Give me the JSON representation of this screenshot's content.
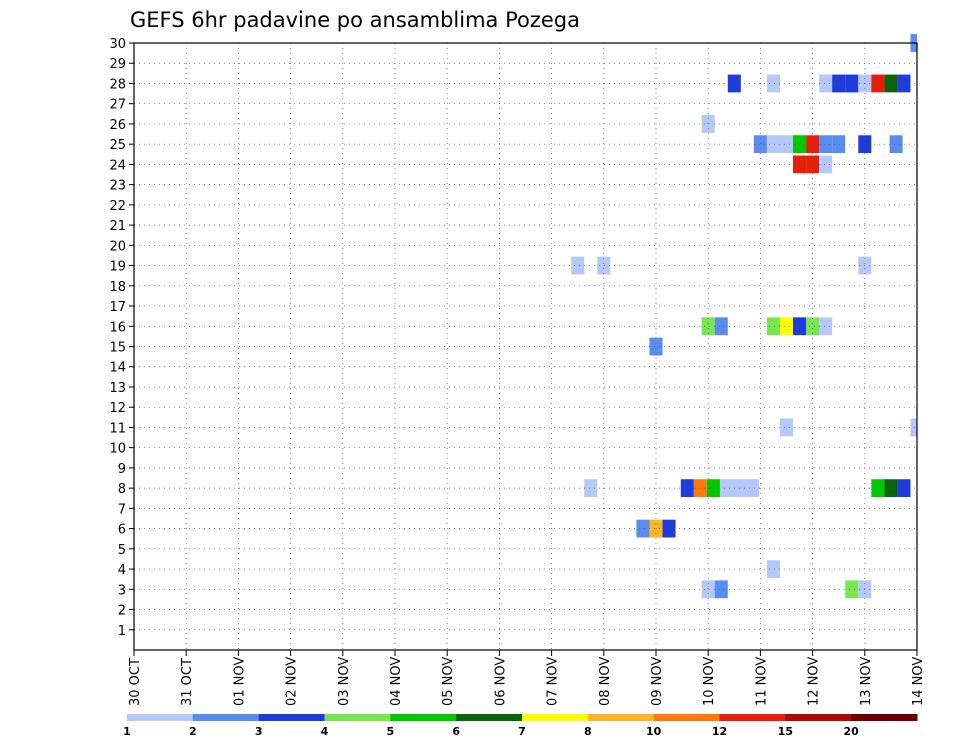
{
  "chart_data": {
    "type": "heatmap",
    "title": "GEFS 6hr padavine po ansamblima Pozega",
    "x_labels": [
      "30 OCT",
      "31 OCT",
      "01 NOV",
      "02 NOV",
      "03 NOV",
      "04 NOV",
      "05 NOV",
      "06 NOV",
      "07 NOV",
      "08 NOV",
      "09 NOV",
      "10 NOV",
      "11 NOV",
      "12 NOV",
      "13 NOV",
      "14 NOV"
    ],
    "x_range_days": [
      0,
      15
    ],
    "y_labels": [
      "1",
      "2",
      "3",
      "4",
      "5",
      "6",
      "7",
      "8",
      "9",
      "10",
      "11",
      "12",
      "13",
      "14",
      "15",
      "16",
      "17",
      "18",
      "19",
      "20",
      "21",
      "22",
      "23",
      "24",
      "25",
      "26",
      "27",
      "28",
      "29",
      "30"
    ],
    "y_range": [
      0,
      30
    ],
    "grid": true,
    "legend": {
      "placement": "bottom",
      "labels": [
        "1",
        "2",
        "3",
        "4",
        "5",
        "6",
        "7",
        "8",
        "10",
        "12",
        "15",
        "20"
      ],
      "colors": [
        "#b4c8fa",
        "#5a8cf0",
        "#1e3cdc",
        "#78e650",
        "#00c800",
        "#0a640a",
        "#ffff00",
        "#ffb428",
        "#ff780a",
        "#e61e0a",
        "#aa0a0a",
        "#6e0000"
      ]
    },
    "cells": [
      {
        "d": 15.0,
        "m": 30,
        "c": 1
      },
      {
        "d": 11.5,
        "m": 28,
        "c": 2
      },
      {
        "d": 12.25,
        "m": 28,
        "c": 0
      },
      {
        "d": 13.25,
        "m": 28,
        "c": 0
      },
      {
        "d": 13.5,
        "m": 28,
        "c": 2
      },
      {
        "d": 13.75,
        "m": 28,
        "c": 2
      },
      {
        "d": 14.0,
        "m": 28,
        "c": 0
      },
      {
        "d": 14.25,
        "m": 28,
        "c": 9
      },
      {
        "d": 14.5,
        "m": 28,
        "c": 5
      },
      {
        "d": 14.75,
        "m": 28,
        "c": 2
      },
      {
        "d": 11.0,
        "m": 26,
        "c": 0
      },
      {
        "d": 12.0,
        "m": 25,
        "c": 1
      },
      {
        "d": 12.25,
        "m": 25,
        "c": 0
      },
      {
        "d": 12.5,
        "m": 25,
        "c": 0
      },
      {
        "d": 12.75,
        "m": 25,
        "c": 4
      },
      {
        "d": 13.0,
        "m": 25,
        "c": 9
      },
      {
        "d": 13.25,
        "m": 25,
        "c": 1
      },
      {
        "d": 13.5,
        "m": 25,
        "c": 1
      },
      {
        "d": 14.0,
        "m": 25,
        "c": 2
      },
      {
        "d": 14.6,
        "m": 25,
        "c": 1
      },
      {
        "d": 12.75,
        "m": 24,
        "c": 9
      },
      {
        "d": 13.0,
        "m": 24,
        "c": 9
      },
      {
        "d": 13.25,
        "m": 24,
        "c": 0
      },
      {
        "d": 8.5,
        "m": 19,
        "c": 0
      },
      {
        "d": 9.0,
        "m": 19,
        "c": 0
      },
      {
        "d": 14.0,
        "m": 19,
        "c": 0
      },
      {
        "d": 11.0,
        "m": 16,
        "c": 3
      },
      {
        "d": 11.25,
        "m": 16,
        "c": 1
      },
      {
        "d": 12.25,
        "m": 16,
        "c": 3
      },
      {
        "d": 12.5,
        "m": 16,
        "c": 6
      },
      {
        "d": 12.75,
        "m": 16,
        "c": 2
      },
      {
        "d": 13.0,
        "m": 16,
        "c": 3
      },
      {
        "d": 13.25,
        "m": 16,
        "c": 0
      },
      {
        "d": 10.0,
        "m": 15,
        "c": 1
      },
      {
        "d": 12.5,
        "m": 11,
        "c": 0
      },
      {
        "d": 15.0,
        "m": 11,
        "c": 0
      },
      {
        "d": 8.75,
        "m": 8,
        "c": 0
      },
      {
        "d": 10.6,
        "m": 8,
        "c": 2
      },
      {
        "d": 10.85,
        "m": 8,
        "c": 8
      },
      {
        "d": 11.1,
        "m": 8,
        "c": 4
      },
      {
        "d": 11.35,
        "m": 8,
        "c": 0
      },
      {
        "d": 11.6,
        "m": 8,
        "c": 0
      },
      {
        "d": 11.85,
        "m": 8,
        "c": 0
      },
      {
        "d": 14.25,
        "m": 8,
        "c": 4
      },
      {
        "d": 14.5,
        "m": 8,
        "c": 5
      },
      {
        "d": 14.75,
        "m": 8,
        "c": 2
      },
      {
        "d": 9.75,
        "m": 6,
        "c": 1
      },
      {
        "d": 10.0,
        "m": 6,
        "c": 7
      },
      {
        "d": 10.25,
        "m": 6,
        "c": 2
      },
      {
        "d": 12.25,
        "m": 4,
        "c": 0
      },
      {
        "d": 11.0,
        "m": 3,
        "c": 0
      },
      {
        "d": 11.25,
        "m": 3,
        "c": 1
      },
      {
        "d": 13.75,
        "m": 3,
        "c": 3
      },
      {
        "d": 14.0,
        "m": 3,
        "c": 0
      }
    ]
  }
}
